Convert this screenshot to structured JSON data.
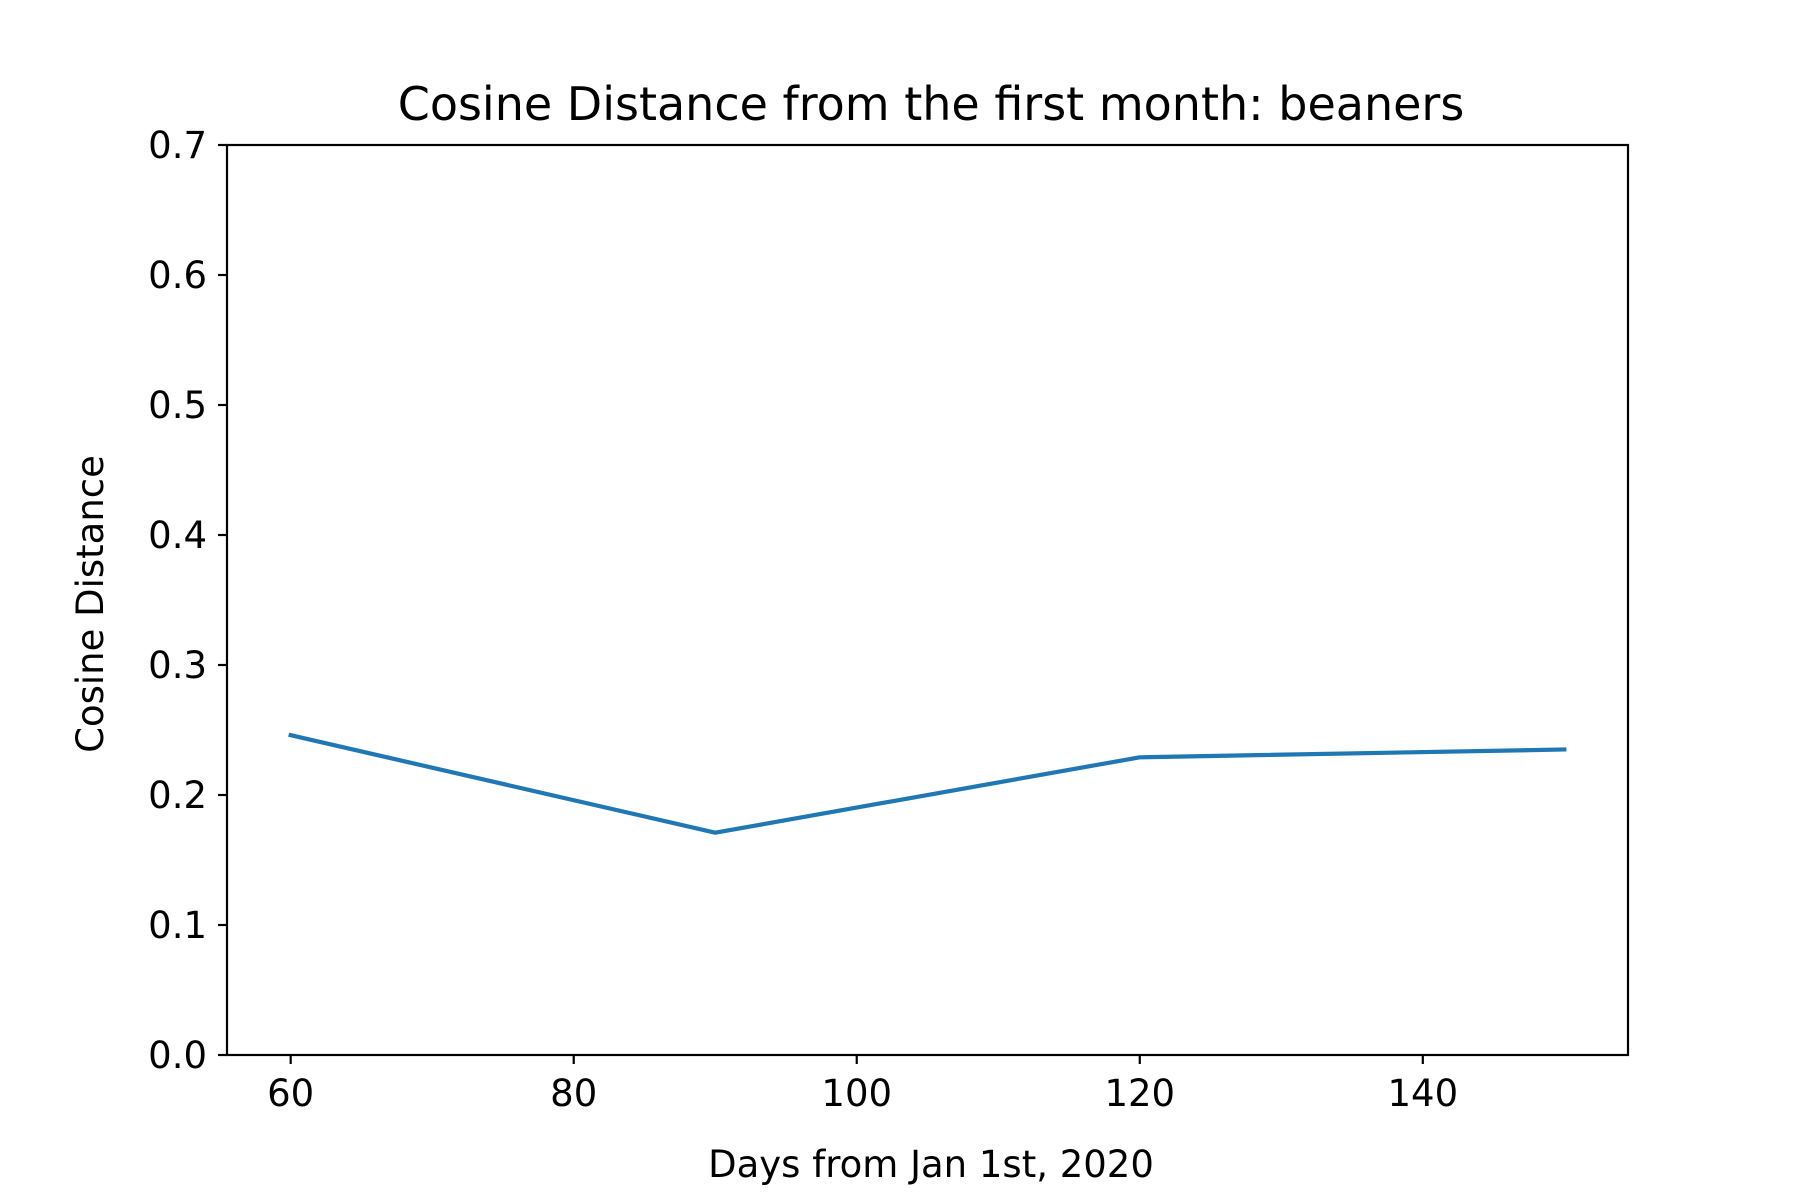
{
  "chart_data": {
    "type": "line",
    "title": "Cosine Distance from the first month: beaners",
    "xlabel": "Days from Jan 1st, 2020",
    "ylabel": "Cosine Distance",
    "xlim": [
      55.5,
      154.5
    ],
    "ylim": [
      0.0,
      0.7
    ],
    "xticks": [
      60,
      80,
      100,
      120,
      140
    ],
    "xtick_labels": [
      "60",
      "80",
      "100",
      "120",
      "140"
    ],
    "yticks": [
      0.0,
      0.1,
      0.2,
      0.3,
      0.4,
      0.5,
      0.6,
      0.7
    ],
    "ytick_labels": [
      "0.0",
      "0.1",
      "0.2",
      "0.3",
      "0.4",
      "0.5",
      "0.6",
      "0.7"
    ],
    "grid": false,
    "legend": false,
    "series": [
      {
        "x": [
          60,
          90,
          120,
          150
        ],
        "values": [
          0.246,
          0.171,
          0.229,
          0.235
        ],
        "color": "#1f77b4"
      }
    ]
  }
}
